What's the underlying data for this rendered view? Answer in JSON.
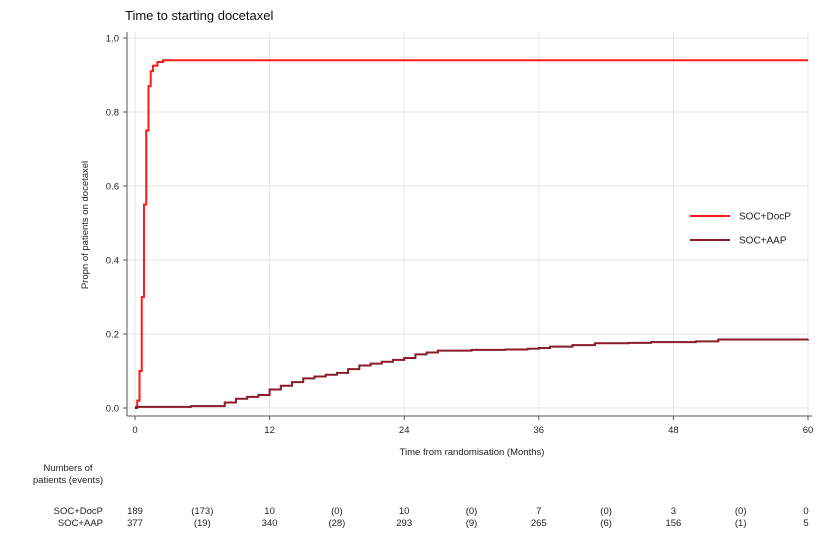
{
  "chart_data": {
    "type": "line",
    "title": "Time to starting docetaxel",
    "xlabel": "Time from randomisation (Months)",
    "ylabel": "Propn of patients on docetaxel",
    "xlim": [
      0,
      60
    ],
    "ylim": [
      0,
      1.0
    ],
    "x_ticks": [
      "0",
      "12",
      "24",
      "36",
      "48",
      "60"
    ],
    "y_ticks": [
      "0.0",
      "0.2",
      "0.4",
      "0.6",
      "0.8",
      "1.0"
    ],
    "grid": true,
    "legend_position": "right",
    "series": [
      {
        "name": "SOC+DocP",
        "color": "#ff1a1a",
        "points": [
          [
            0,
            0
          ],
          [
            0.2,
            0.02
          ],
          [
            0.4,
            0.1
          ],
          [
            0.6,
            0.3
          ],
          [
            0.8,
            0.55
          ],
          [
            1.0,
            0.75
          ],
          [
            1.2,
            0.87
          ],
          [
            1.4,
            0.91
          ],
          [
            1.6,
            0.925
          ],
          [
            2.0,
            0.935
          ],
          [
            2.5,
            0.94
          ],
          [
            60,
            0.94
          ]
        ]
      },
      {
        "name": "SOC+AAP",
        "color": "#8b1a2a",
        "points": [
          [
            0,
            0
          ],
          [
            0.1,
            0.003
          ],
          [
            3,
            0.003
          ],
          [
            5,
            0.005
          ],
          [
            7,
            0.005
          ],
          [
            8,
            0.015
          ],
          [
            9,
            0.025
          ],
          [
            10,
            0.03
          ],
          [
            11,
            0.035
          ],
          [
            12,
            0.05
          ],
          [
            13,
            0.06
          ],
          [
            14,
            0.07
          ],
          [
            15,
            0.08
          ],
          [
            16,
            0.085
          ],
          [
            17,
            0.09
          ],
          [
            18,
            0.095
          ],
          [
            19,
            0.105
          ],
          [
            20,
            0.115
          ],
          [
            21,
            0.12
          ],
          [
            22,
            0.125
          ],
          [
            23,
            0.13
          ],
          [
            24,
            0.135
          ],
          [
            25,
            0.145
          ],
          [
            26,
            0.15
          ],
          [
            27,
            0.155
          ],
          [
            28,
            0.155
          ],
          [
            30,
            0.157
          ],
          [
            33,
            0.158
          ],
          [
            35,
            0.16
          ],
          [
            36,
            0.162
          ],
          [
            37,
            0.166
          ],
          [
            39,
            0.17
          ],
          [
            41,
            0.175
          ],
          [
            44,
            0.176
          ],
          [
            46,
            0.178
          ],
          [
            50,
            0.18
          ],
          [
            52,
            0.185
          ],
          [
            60,
            0.186
          ]
        ]
      }
    ]
  },
  "risk_table": {
    "header": [
      "Numbers of",
      "patients (events)"
    ],
    "rows": [
      {
        "label": "SOC+DocP",
        "cells": [
          "189",
          "(173)",
          "10",
          "(0)",
          "10",
          "(0)",
          "7",
          "(0)",
          "3",
          "(0)",
          "0"
        ]
      },
      {
        "label": "SOC+AAP",
        "cells": [
          "377",
          "(19)",
          "340",
          "(28)",
          "293",
          "(9)",
          "265",
          "(6)",
          "156",
          "(1)",
          "5"
        ]
      }
    ]
  }
}
